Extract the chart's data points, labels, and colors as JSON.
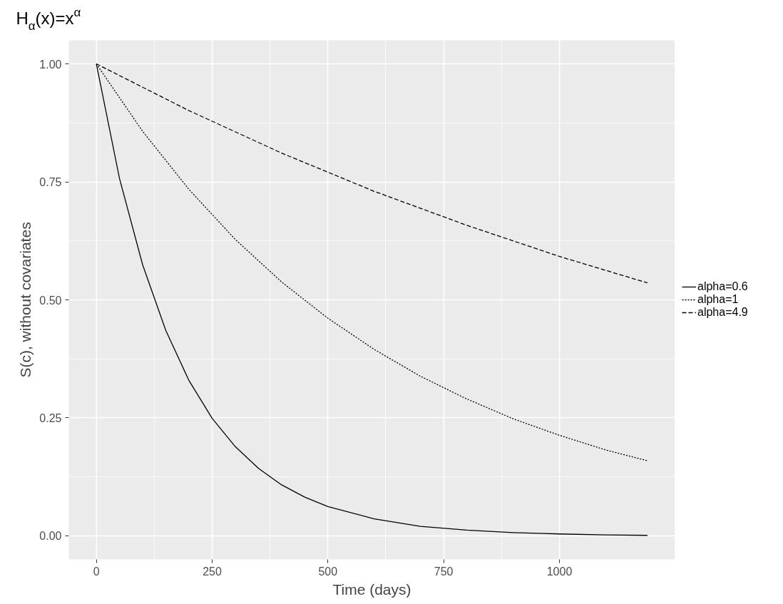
{
  "chart_data": {
    "type": "line",
    "title": "H$_{α}$(x)=x$^{α}$",
    "xlabel": "Time (days)",
    "ylabel": "S(c), without covariates",
    "xlim": [
      -59.5,
      1249.5
    ],
    "xticks": [
      0,
      250,
      500,
      750,
      1000
    ],
    "ylim": [
      -0.05,
      1.05
    ],
    "yticks": [
      {
        "value": 0,
        "label": "0.00"
      },
      {
        "value": 0.25,
        "label": "0.25"
      },
      {
        "value": 0.5,
        "label": "0.50"
      },
      {
        "value": 0.75,
        "label": "0.75"
      },
      {
        "value": 1,
        "label": "1.00"
      }
    ],
    "grid": true,
    "legend": "right",
    "marker": "none",
    "series": [
      {
        "name": "alpha=0.6",
        "color": "#000000",
        "line_style": "solid",
        "x": [
          0,
          50,
          100,
          150,
          200,
          250,
          300,
          350,
          400,
          450,
          500,
          600,
          700,
          800,
          900,
          1000,
          1100,
          1190
        ],
        "values": [
          1,
          0.757,
          0.574,
          0.435,
          0.329,
          0.249,
          0.189,
          0.143,
          0.108,
          0.082,
          0.062,
          0.036,
          0.02,
          0.012,
          0.007,
          0.004,
          0.002,
          0.001
        ]
      },
      {
        "name": "alpha=1",
        "color": "#000000",
        "line_style": "dotted",
        "x": [
          0,
          100,
          200,
          300,
          400,
          500,
          600,
          700,
          800,
          900,
          1000,
          1100,
          1190
        ],
        "values": [
          1,
          0.857,
          0.734,
          0.628,
          0.538,
          0.461,
          0.395,
          0.338,
          0.29,
          0.248,
          0.213,
          0.182,
          0.159
        ]
      },
      {
        "name": "alpha=4.9",
        "color": "#000000",
        "line_style": "dashed",
        "x": [
          0,
          200,
          400,
          600,
          800,
          1000,
          1190
        ],
        "values": [
          1,
          0.901,
          0.811,
          0.73,
          0.658,
          0.592,
          0.536
        ]
      }
    ]
  }
}
